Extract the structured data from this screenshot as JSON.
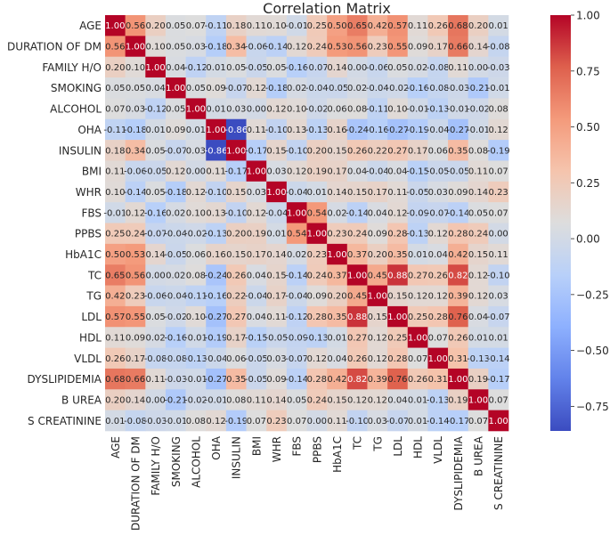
{
  "chart_data": {
    "type": "heatmap",
    "title": "Correlation Matrix",
    "variables": [
      "AGE",
      "DURATION OF DM",
      "FAMILY H/O",
      "SMOKING",
      "ALCOHOL",
      "OHA",
      "INSULIN",
      "BMI",
      "WHR",
      "FBS",
      "PPBS",
      "HbA1C",
      "TC",
      "TG",
      "LDL",
      "HDL",
      "VLDL",
      "DYSLIPIDEMIA",
      "B UREA",
      "S CREATININE"
    ],
    "matrix": [
      [
        1.0,
        0.56,
        0.2,
        0.05,
        0.07,
        -0.11,
        0.18,
        0.11,
        0.1,
        -0.01,
        0.25,
        0.5,
        0.65,
        0.42,
        0.57,
        0.11,
        0.26,
        0.68,
        0.2,
        0.01
      ],
      [
        0.56,
        1.0,
        0.1,
        0.05,
        0.03,
        -0.18,
        0.34,
        -0.06,
        -0.14,
        0.12,
        0.24,
        0.53,
        0.56,
        0.23,
        0.55,
        0.09,
        0.17,
        0.66,
        0.14,
        -0.08
      ],
      [
        0.2,
        0.1,
        1.0,
        0.04,
        -0.12,
        0.01,
        0.05,
        -0.05,
        0.05,
        -0.16,
        -0.07,
        0.14,
        0.0,
        -0.06,
        0.05,
        0.02,
        -0.08,
        0.11,
        0.0,
        -0.03
      ],
      [
        0.05,
        0.05,
        0.04,
        1.0,
        0.05,
        0.09,
        -0.07,
        0.12,
        -0.18,
        0.02,
        -0.04,
        -0.05,
        0.02,
        -0.04,
        -0.02,
        -0.16,
        -0.08,
        -0.03,
        -0.21,
        -0.01
      ],
      [
        0.07,
        0.03,
        -0.12,
        0.05,
        1.0,
        0.01,
        0.03,
        0.0,
        0.12,
        0.1,
        -0.02,
        0.06,
        0.08,
        -0.11,
        0.1,
        -0.01,
        -0.13,
        -0.01,
        -0.02,
        0.08
      ],
      [
        -0.11,
        -0.18,
        0.01,
        0.09,
        0.01,
        1.0,
        -0.86,
        0.11,
        -0.1,
        0.13,
        -0.13,
        0.16,
        -0.24,
        -0.16,
        -0.27,
        -0.19,
        -0.04,
        -0.27,
        -0.01,
        0.12
      ],
      [
        0.18,
        0.34,
        0.05,
        -0.07,
        0.03,
        -0.86,
        1.0,
        -0.17,
        0.15,
        -0.1,
        0.2,
        0.15,
        0.26,
        0.22,
        0.27,
        0.17,
        0.06,
        0.35,
        0.08,
        -0.19
      ],
      [
        0.11,
        -0.06,
        -0.05,
        0.12,
        0.0,
        0.11,
        -0.17,
        1.0,
        0.03,
        0.12,
        0.19,
        0.17,
        0.04,
        -0.04,
        0.04,
        -0.15,
        -0.05,
        -0.05,
        0.11,
        0.07
      ],
      [
        0.1,
        -0.14,
        0.05,
        -0.18,
        0.12,
        -0.1,
        0.15,
        0.03,
        1.0,
        -0.04,
        0.01,
        0.14,
        0.15,
        0.17,
        0.11,
        -0.05,
        0.03,
        0.09,
        0.14,
        0.23
      ],
      [
        -0.01,
        0.12,
        -0.16,
        0.02,
        0.1,
        0.13,
        -0.1,
        0.12,
        -0.04,
        1.0,
        0.54,
        0.02,
        -0.14,
        0.04,
        0.12,
        -0.09,
        -0.07,
        -0.14,
        0.05,
        0.07
      ],
      [
        0.25,
        0.24,
        -0.07,
        -0.04,
        -0.02,
        -0.13,
        0.2,
        0.19,
        0.01,
        0.54,
        1.0,
        0.23,
        0.24,
        0.09,
        0.28,
        -0.13,
        0.12,
        0.28,
        0.24,
        0.0
      ],
      [
        0.5,
        0.53,
        0.14,
        -0.05,
        0.06,
        0.16,
        0.15,
        0.17,
        0.14,
        0.02,
        0.23,
        1.0,
        0.37,
        0.2,
        0.35,
        0.01,
        0.04,
        0.42,
        0.15,
        0.11
      ],
      [
        0.65,
        0.56,
        0.0,
        0.02,
        0.08,
        -0.24,
        0.26,
        0.04,
        0.15,
        -0.14,
        0.24,
        0.37,
        1.0,
        0.45,
        0.88,
        0.27,
        0.26,
        0.82,
        0.12,
        -0.1
      ],
      [
        0.42,
        0.23,
        -0.06,
        -0.04,
        -0.11,
        -0.16,
        0.22,
        -0.04,
        0.17,
        -0.04,
        0.09,
        0.2,
        0.45,
        1.0,
        0.15,
        0.12,
        0.12,
        0.39,
        0.12,
        0.03
      ],
      [
        0.57,
        0.55,
        0.05,
        -0.02,
        0.1,
        -0.27,
        0.27,
        0.04,
        0.11,
        -0.12,
        0.28,
        0.35,
        0.88,
        0.15,
        1.0,
        0.25,
        0.28,
        0.76,
        0.04,
        -0.07
      ],
      [
        0.11,
        0.09,
        0.02,
        -0.16,
        -0.01,
        -0.19,
        0.17,
        -0.15,
        -0.05,
        -0.09,
        -0.13,
        0.01,
        0.27,
        0.12,
        0.25,
        1.0,
        0.07,
        0.26,
        0.01,
        0.01
      ],
      [
        0.26,
        0.17,
        -0.08,
        -0.08,
        -0.13,
        -0.04,
        0.06,
        -0.05,
        0.03,
        -0.07,
        0.12,
        0.04,
        0.26,
        0.12,
        0.28,
        0.07,
        1.0,
        0.31,
        -0.13,
        -0.14
      ],
      [
        0.68,
        0.66,
        0.11,
        -0.03,
        -0.01,
        -0.27,
        0.35,
        -0.05,
        0.09,
        -0.14,
        0.28,
        0.42,
        0.82,
        0.39,
        0.76,
        0.26,
        0.31,
        1.0,
        0.19,
        -0.17
      ],
      [
        0.2,
        0.14,
        0.0,
        -0.21,
        -0.02,
        -0.01,
        0.08,
        0.11,
        0.14,
        0.05,
        0.24,
        0.15,
        0.12,
        0.12,
        0.04,
        0.01,
        -0.13,
        0.19,
        1.0,
        0.07
      ],
      [
        0.01,
        -0.08,
        -0.03,
        -0.01,
        0.08,
        0.12,
        -0.19,
        0.07,
        0.23,
        0.07,
        0.0,
        0.11,
        -0.1,
        0.03,
        -0.07,
        0.01,
        -0.14,
        -0.17,
        0.07,
        1.0
      ]
    ],
    "colorbar": {
      "min": -0.86,
      "max": 1.0,
      "ticks": [
        "1.00",
        "0.75",
        "0.50",
        "0.25",
        "0.00",
        "−0.25",
        "−0.50",
        "−0.75"
      ],
      "tick_values": [
        1.0,
        0.75,
        0.5,
        0.25,
        0.0,
        -0.25,
        -0.5,
        -0.75
      ],
      "colormap": "coolwarm"
    }
  }
}
